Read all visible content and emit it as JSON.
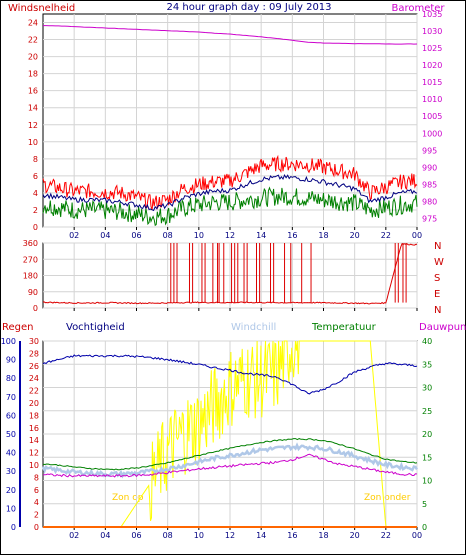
{
  "colors": {
    "frame": "#000000",
    "bg": "#ffffff",
    "left_axis": "#cc0000",
    "right_axis": "#cc00cc",
    "tick_text": "#000080",
    "grid": "#d4d4d4",
    "wind_gust": "#ff0000",
    "wind_avg": "#000080",
    "wind_speed": "#008000",
    "barometer": "#cc00cc",
    "direction": "#dd0000",
    "rain": "#ff6600",
    "humidity": "#0000aa",
    "windchill": "#b0c8e8",
    "temperature": "#008000",
    "dewpoint": "#cc00cc",
    "solar": "#ffff00",
    "humidity_axis": "#0000aa",
    "temp_axis": "#008000"
  },
  "chart_data": [
    {
      "type": "line",
      "title": "24 hour graph day : 09 July 2013",
      "left_label": "Windsnelheid",
      "right_label": "Barometer",
      "x_ticks": [
        "02",
        "04",
        "06",
        "08",
        "10",
        "12",
        "14",
        "16",
        "18",
        "20",
        "22",
        "00"
      ],
      "y_left": {
        "ticks": [
          0,
          2,
          4,
          6,
          8,
          10,
          12,
          14,
          16,
          18,
          20,
          22,
          24
        ],
        "range": [
          0,
          25
        ]
      },
      "y_right": {
        "ticks": [
          975,
          980,
          985,
          990,
          995,
          1000,
          1005,
          1010,
          1015,
          1020,
          1025,
          1030,
          1035
        ],
        "range": [
          972.5,
          1035
        ]
      },
      "x": [
        0,
        1,
        2,
        3,
        4,
        5,
        6,
        7,
        8,
        9,
        10,
        11,
        12,
        13,
        14,
        15,
        16,
        17,
        18,
        19,
        20,
        21,
        22,
        23,
        24
      ],
      "series": [
        {
          "key": "gust",
          "values": [
            5,
            4.6,
            4.2,
            4.2,
            4.1,
            4,
            3.5,
            2.8,
            3.2,
            4.5,
            5,
            5.3,
            5.4,
            6.3,
            7.2,
            7.4,
            7.4,
            7.3,
            7,
            6.6,
            6.2,
            4,
            4.7,
            5.3,
            5.5
          ]
        },
        {
          "key": "avg",
          "values": [
            3.8,
            3.5,
            3.2,
            3.2,
            3.1,
            2.9,
            2.6,
            2.2,
            2.5,
            3.4,
            3.9,
            4.2,
            4.3,
            5,
            5.6,
            5.8,
            5.8,
            5.6,
            5.3,
            4.9,
            4.5,
            3,
            3.5,
            4,
            4.2
          ]
        },
        {
          "key": "speed",
          "values": [
            2.6,
            2.3,
            2,
            2,
            1.9,
            1.8,
            1.5,
            1.2,
            1.4,
            2.2,
            2.6,
            2.9,
            2.9,
            3.2,
            3.4,
            3.6,
            3.6,
            3.4,
            3.2,
            3,
            2.8,
            2,
            2.3,
            2.6,
            2.8
          ]
        },
        {
          "key": "barometer",
          "values": [
            1031.6,
            1031.5,
            1031.3,
            1031.1,
            1030.9,
            1030.7,
            1030.5,
            1030.3,
            1030.1,
            1029.9,
            1029.7,
            1029.4,
            1029.1,
            1028.7,
            1028.3,
            1027.8,
            1027.3,
            1026.7,
            1026.5,
            1026.4,
            1026.3,
            1026.3,
            1026.2,
            1026.2,
            1026.2
          ]
        }
      ]
    },
    {
      "type": "line",
      "left_label": "",
      "y_left": {
        "ticks": [
          0,
          90,
          180,
          270,
          360
        ],
        "range": [
          0,
          360
        ]
      },
      "right_labels": [
        "N",
        "W",
        "S",
        "E",
        "N"
      ],
      "x": [
        0,
        1,
        2,
        3,
        4,
        5,
        6,
        7,
        8,
        9,
        10,
        11,
        12,
        13,
        14,
        15,
        16,
        17,
        18,
        19,
        20,
        21,
        22,
        23,
        24
      ],
      "series": [
        {
          "key": "direction",
          "values": [
            32,
            30,
            28,
            28,
            29,
            28,
            27,
            27,
            28,
            30,
            31,
            30,
            30,
            31,
            30,
            30,
            29,
            30,
            29,
            28,
            27,
            25,
            28,
            355,
            350
          ]
        }
      ],
      "north_spikes_hours": [
        8.2,
        8.4,
        8.6,
        9.4,
        9.6,
        10.2,
        10.4,
        10.9,
        11.2,
        11.3,
        11.6,
        12.1,
        12.3,
        12.5,
        12.9,
        13.1,
        13.7,
        13.9,
        14.6,
        14.8,
        15.5,
        15.9,
        16.6,
        17.2,
        22.6,
        22.8,
        23.1,
        23.3
      ]
    },
    {
      "type": "line",
      "legend": [
        "Regen",
        "Vochtigheid",
        "Windchill",
        "Temperatuur",
        "Dauwpunt"
      ],
      "annotations": [
        "Zon op",
        "Zon onder"
      ],
      "y_rain": {
        "ticks": [
          0,
          10,
          20,
          30,
          40,
          50,
          60,
          70,
          80,
          90,
          100
        ],
        "range": [
          0,
          100
        ]
      },
      "y_humidity": {
        "ticks": [
          0,
          2,
          4,
          6,
          8,
          10,
          12,
          14,
          16,
          18,
          20,
          22,
          24,
          26,
          28,
          30
        ],
        "range": [
          0,
          30
        ]
      },
      "y_temp": {
        "ticks": [
          0,
          5,
          10,
          15,
          20,
          25,
          30,
          35,
          40
        ],
        "range": [
          0,
          40
        ]
      },
      "x": [
        0,
        1,
        2,
        3,
        4,
        5,
        6,
        7,
        8,
        9,
        10,
        11,
        12,
        13,
        14,
        15,
        16,
        17,
        18,
        19,
        20,
        21,
        22,
        23,
        24
      ],
      "series": [
        {
          "key": "rain",
          "values": [
            0,
            0,
            0,
            0,
            0,
            0,
            0,
            0,
            0,
            0,
            0,
            0,
            0,
            0,
            0,
            0,
            0,
            0,
            0,
            0,
            0,
            0,
            0,
            0,
            0
          ]
        },
        {
          "key": "humidity",
          "values": [
            26.4,
            27,
            27.6,
            27.6,
            27.6,
            27.6,
            27.5,
            27.3,
            27,
            26.6,
            26.2,
            25.7,
            25.3,
            24.8,
            24.5,
            24.2,
            23,
            21.5,
            22.2,
            23.5,
            25,
            25.8,
            26.4,
            26.2,
            26
          ]
        },
        {
          "key": "temperature",
          "values": [
            13.6,
            13.3,
            12.9,
            12.6,
            12.4,
            12.4,
            12.7,
            13.2,
            13.8,
            14.6,
            15.4,
            16.2,
            16.9,
            17.6,
            18.2,
            18.6,
            18.9,
            18.9,
            18.6,
            17.8,
            16.8,
            15.6,
            14.6,
            14.1,
            13.8
          ]
        },
        {
          "key": "windchill",
          "values": [
            12.6,
            12.2,
            11.8,
            11.6,
            11.4,
            11.4,
            11.6,
            12,
            12.5,
            13.2,
            14,
            14.8,
            15.4,
            16,
            16.6,
            16.9,
            17.2,
            17.2,
            16.9,
            16.2,
            15.3,
            14.3,
            13.4,
            12.9,
            12.6
          ]
        },
        {
          "key": "dewpoint",
          "values": [
            11.3,
            11.1,
            11,
            11,
            11,
            11,
            11.1,
            11.3,
            11.7,
            12.1,
            12.5,
            12.8,
            13.1,
            13.4,
            13.7,
            13.9,
            14.5,
            15.5,
            14.6,
            13.5,
            13,
            12.4,
            11.8,
            11.4,
            11.2
          ]
        },
        {
          "key": "solar",
          "values": [
            0,
            0,
            0,
            0,
            0,
            0,
            5,
            10,
            16,
            20,
            22,
            26,
            30,
            32,
            32,
            33,
            40,
            40,
            40,
            40,
            40,
            40,
            0,
            0,
            0
          ]
        }
      ]
    }
  ]
}
